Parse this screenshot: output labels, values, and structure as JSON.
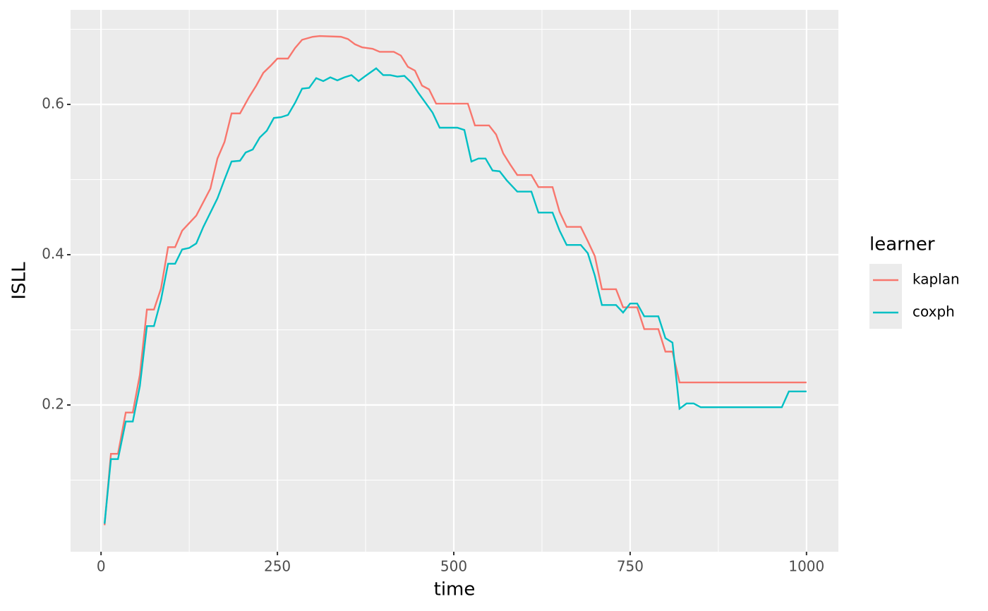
{
  "chart_data": {
    "type": "line",
    "x_label": "time",
    "y_label": "ISLL",
    "xlim": [
      -43.2,
      1045.2
    ],
    "ylim": [
      0.0047,
      0.7258
    ],
    "xticks": [
      0,
      250,
      500,
      750,
      1000
    ],
    "yticks": [
      0.2,
      0.4,
      0.6
    ],
    "grid": true,
    "legend_title": "learner",
    "legend_position": "right",
    "series": [
      {
        "name": "kaplan",
        "color": "#F8766D",
        "x": [
          5,
          14,
          24,
          35,
          45,
          55,
          65,
          75,
          85,
          95,
          105,
          115,
          135,
          155,
          165,
          175,
          185,
          197,
          210,
          220,
          230,
          240,
          250,
          265,
          275,
          285,
          300,
          310,
          340,
          350,
          360,
          370,
          385,
          395,
          415,
          425,
          435,
          445,
          455,
          465,
          475,
          520,
          530,
          550,
          560,
          570,
          580,
          590,
          610,
          620,
          640,
          650,
          660,
          680,
          690,
          700,
          710,
          730,
          740,
          760,
          770,
          790,
          800,
          810,
          820,
          1000
        ],
        "values": [
          0.04,
          0.135,
          0.135,
          0.19,
          0.19,
          0.24,
          0.327,
          0.327,
          0.355,
          0.41,
          0.41,
          0.432,
          0.452,
          0.488,
          0.528,
          0.55,
          0.588,
          0.588,
          0.61,
          0.625,
          0.642,
          0.651,
          0.661,
          0.661,
          0.675,
          0.686,
          0.69,
          0.691,
          0.69,
          0.687,
          0.68,
          0.676,
          0.674,
          0.67,
          0.67,
          0.665,
          0.65,
          0.645,
          0.625,
          0.62,
          0.601,
          0.601,
          0.572,
          0.572,
          0.56,
          0.535,
          0.52,
          0.506,
          0.506,
          0.49,
          0.49,
          0.457,
          0.437,
          0.437,
          0.418,
          0.398,
          0.354,
          0.354,
          0.33,
          0.33,
          0.301,
          0.301,
          0.271,
          0.271,
          0.23,
          0.23
        ]
      },
      {
        "name": "coxph",
        "color": "#00BFC4",
        "x": [
          5,
          14,
          24,
          35,
          45,
          55,
          65,
          75,
          85,
          95,
          105,
          115,
          125,
          135,
          145,
          165,
          175,
          185,
          197,
          205,
          215,
          225,
          235,
          245,
          255,
          265,
          275,
          285,
          295,
          305,
          315,
          325,
          335,
          345,
          355,
          365,
          375,
          390,
          400,
          410,
          420,
          430,
          440,
          450,
          460,
          470,
          480,
          505,
          515,
          525,
          535,
          545,
          555,
          565,
          575,
          590,
          610,
          620,
          640,
          650,
          660,
          680,
          690,
          700,
          710,
          730,
          740,
          750,
          760,
          770,
          790,
          800,
          810,
          820,
          830,
          840,
          850,
          965,
          975,
          1000
        ],
        "values": [
          0.042,
          0.128,
          0.128,
          0.178,
          0.178,
          0.225,
          0.305,
          0.305,
          0.34,
          0.388,
          0.388,
          0.407,
          0.409,
          0.415,
          0.437,
          0.475,
          0.5,
          0.524,
          0.525,
          0.536,
          0.54,
          0.556,
          0.565,
          0.582,
          0.583,
          0.586,
          0.602,
          0.621,
          0.622,
          0.635,
          0.631,
          0.636,
          0.632,
          0.636,
          0.639,
          0.631,
          0.638,
          0.648,
          0.639,
          0.639,
          0.637,
          0.638,
          0.629,
          0.615,
          0.602,
          0.589,
          0.569,
          0.569,
          0.566,
          0.524,
          0.528,
          0.528,
          0.512,
          0.511,
          0.499,
          0.484,
          0.484,
          0.456,
          0.456,
          0.432,
          0.413,
          0.413,
          0.402,
          0.372,
          0.333,
          0.333,
          0.323,
          0.335,
          0.335,
          0.318,
          0.318,
          0.289,
          0.283,
          0.195,
          0.202,
          0.202,
          0.197,
          0.197,
          0.218,
          0.218
        ]
      }
    ]
  }
}
